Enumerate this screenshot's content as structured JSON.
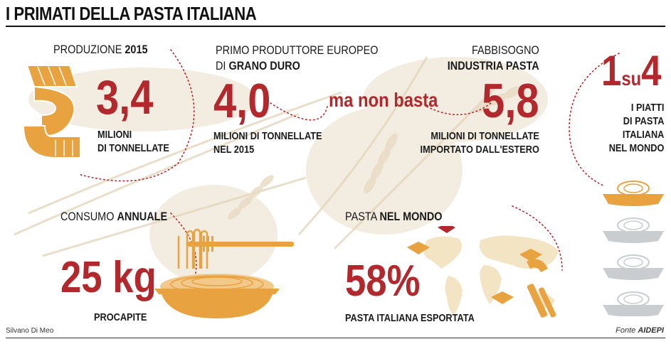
{
  "title": "I PRIMATI DELLA PASTA ITALIANA",
  "produzione": {
    "label": "PRODUZIONE",
    "label_bold": "2015",
    "value": "3,4",
    "unit_line1": "MILIONI",
    "unit_line2": "DI TONNELLATE"
  },
  "grano": {
    "label_line1": "PRIMO PRODUTTORE EUROPEO",
    "label_line2": "DI",
    "label_bold": "GRANO DURO",
    "value": "4,0",
    "unit_line1": "MILIONI DI TONNELLATE",
    "unit_line2": "NEL 2015"
  },
  "connector": "ma non basta",
  "fabbisogno": {
    "label_line1": "FABBISOGNO",
    "label_bold": "INDUSTRIA PASTA",
    "value": "5,8",
    "unit_line1": "MILIONI DI TONNELLATE",
    "unit_line2": "IMPORTATO DALL'ESTERO"
  },
  "piatti": {
    "value_a": "1",
    "value_mid": "su",
    "value_b": "4",
    "lines": [
      "I PIATTI",
      "DI PASTA",
      "ITALIANA",
      "NEL MONDO"
    ],
    "fraction": 0.25
  },
  "consumo": {
    "label": "CONSUMO",
    "label_bold": "ANNUALE",
    "value": "25 kg",
    "unit": "PROCAPITE"
  },
  "mondo": {
    "label": "PASTA",
    "label_bold": "NEL MONDO",
    "value": "58%",
    "unit": "PASTA ITALIANA ESPORTATA"
  },
  "credit": "Silvano Di Meo",
  "source_prefix": "Fonte",
  "source_name": "AIDEPI",
  "colors": {
    "accent_red": "#b3282d",
    "pasta_orange": "#e8a240",
    "plate_grey": "#c9cdd0",
    "map_beige": "#f3e4c4"
  }
}
